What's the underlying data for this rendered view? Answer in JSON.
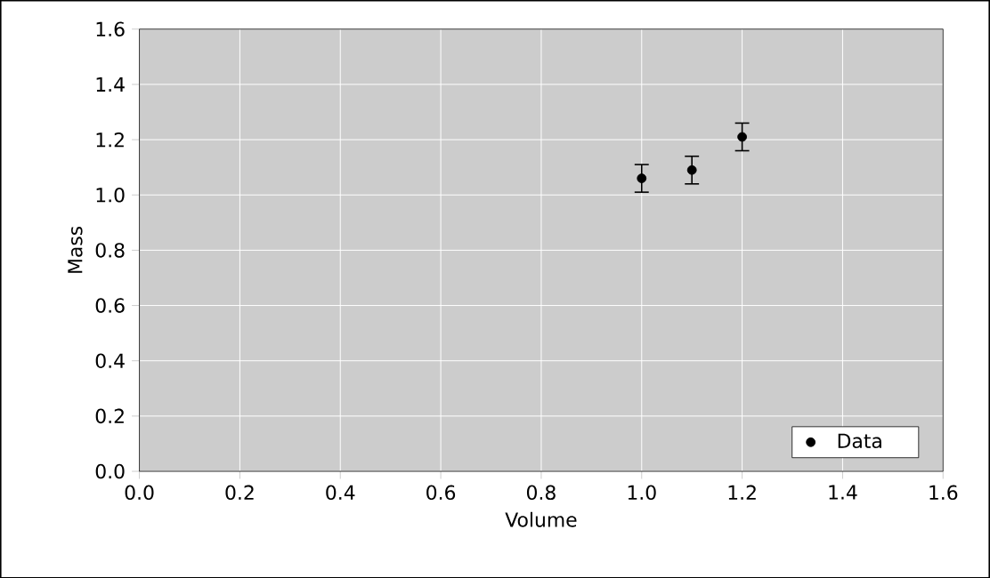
{
  "chart_data": {
    "type": "scatter",
    "xlabel": "Volume",
    "ylabel": "Mass",
    "x": [
      1.0,
      1.1,
      1.2
    ],
    "series": [
      {
        "name": "Data",
        "color": "#000000",
        "values": [
          1.06,
          1.09,
          1.21
        ],
        "errors": [
          0.05,
          0.05,
          0.05
        ]
      }
    ],
    "xlim": [
      0,
      1.6
    ],
    "ylim": [
      0,
      1.6
    ],
    "xticks": [
      {
        "value": 0,
        "label": "0.0"
      },
      {
        "value": 0.2,
        "label": "0.2"
      },
      {
        "value": 0.4,
        "label": "0.4"
      },
      {
        "value": 0.6,
        "label": "0.6"
      },
      {
        "value": 0.8,
        "label": "0.8"
      },
      {
        "value": 1,
        "label": "1.0"
      },
      {
        "value": 1.2,
        "label": "1.2"
      },
      {
        "value": 1.4,
        "label": "1.4"
      },
      {
        "value": 1.6,
        "label": "1.6"
      }
    ],
    "yticks": [
      {
        "value": 0,
        "label": "0.0"
      },
      {
        "value": 0.2,
        "label": "0.2"
      },
      {
        "value": 0.4,
        "label": "0.4"
      },
      {
        "value": 0.6,
        "label": "0.6"
      },
      {
        "value": 0.8,
        "label": "0.8"
      },
      {
        "value": 1,
        "label": "1.0"
      },
      {
        "value": 1.2,
        "label": "1.2"
      },
      {
        "value": 1.4,
        "label": "1.4"
      },
      {
        "value": 1.6,
        "label": "1.6"
      }
    ],
    "grid": true,
    "legend": "bottom right",
    "marker": "circle"
  }
}
